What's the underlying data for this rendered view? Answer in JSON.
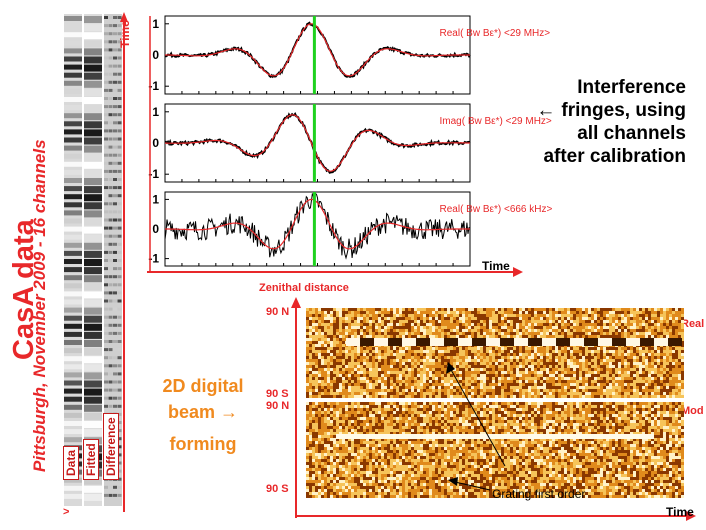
{
  "side": {
    "title": "CasA data",
    "subtitle": "Pittsburgh, November 2009 - 16 channels",
    "strip_labels": [
      "Data",
      "Fitted",
      "Difference"
    ],
    "time_label": "Time",
    "bottom_arrow": ">"
  },
  "annotation": {
    "arrow": "←",
    "lines": [
      "Interference",
      "fringes, using",
      "all channels",
      "after calibration"
    ]
  },
  "beamforming": {
    "lines": [
      "2D digital",
      "beam →",
      "forming"
    ]
  },
  "chart_data": [
    {
      "type": "line",
      "label": "Real( Bw Bε*)  <29 MHz>",
      "ylim": [
        -1.25,
        1.25
      ],
      "yticks": [
        "1",
        "0",
        "-1"
      ],
      "series": [
        {
          "description": "measured points",
          "color": "#000000"
        },
        {
          "description": "fit",
          "color": "#e8282a"
        }
      ],
      "marker_color": "#1fd11f"
    },
    {
      "type": "line",
      "label": "Imag( Bw Bε*)  <29 MHz>",
      "ylim": [
        -1.25,
        1.25
      ],
      "yticks": [
        "1",
        "0",
        "-1"
      ],
      "series": [
        {
          "description": "measured points",
          "color": "#000000"
        },
        {
          "description": "fit",
          "color": "#e8282a"
        }
      ],
      "marker_color": "#1fd11f"
    },
    {
      "type": "line",
      "label": "Real( Bw Bε*)  <666 kHz>",
      "ylim": [
        -1.25,
        1.25
      ],
      "yticks": [
        "1",
        "0",
        "-1"
      ],
      "xlabel": "Time",
      "series": [
        {
          "description": "measured points",
          "color": "#000000"
        },
        {
          "description": "fit",
          "color": "#e8282a"
        }
      ],
      "marker_color": "#1fd11f"
    },
    {
      "type": "heatmap",
      "ylabel": "Zenithal distance",
      "xlabel": "Time",
      "panels": [
        {
          "name": "Real",
          "ytick_top": "90 N",
          "ytick_bottom": "90 S"
        },
        {
          "name": "Mod",
          "ytick_top": "90 N",
          "ytick_bottom": "90 S"
        }
      ],
      "annotation": "Grating first order",
      "colors": [
        "#8a3800",
        "#e08a1c",
        "#f6c45a",
        "#fff2c8"
      ]
    }
  ]
}
